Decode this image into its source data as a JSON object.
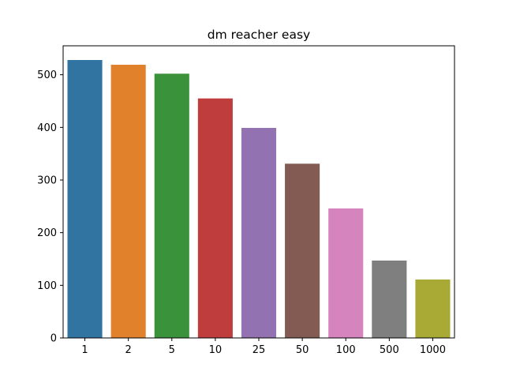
{
  "chart_data": {
    "type": "bar",
    "title": "dm reacher easy",
    "xlabel": "",
    "ylabel": "",
    "categories": [
      "1",
      "2",
      "5",
      "10",
      "25",
      "50",
      "100",
      "500",
      "1000"
    ],
    "values": [
      528,
      519,
      502,
      455,
      399,
      331,
      246,
      147,
      111
    ],
    "ylim": [
      0,
      555
    ],
    "yticks": [
      0,
      100,
      200,
      300,
      400,
      500
    ],
    "grid": false,
    "legend": "none",
    "colors": [
      "#3274a1",
      "#e1812c",
      "#3a923a",
      "#c03d3e",
      "#9372b2",
      "#845b53",
      "#d684bd",
      "#7f7f7f",
      "#a9aa35"
    ]
  }
}
